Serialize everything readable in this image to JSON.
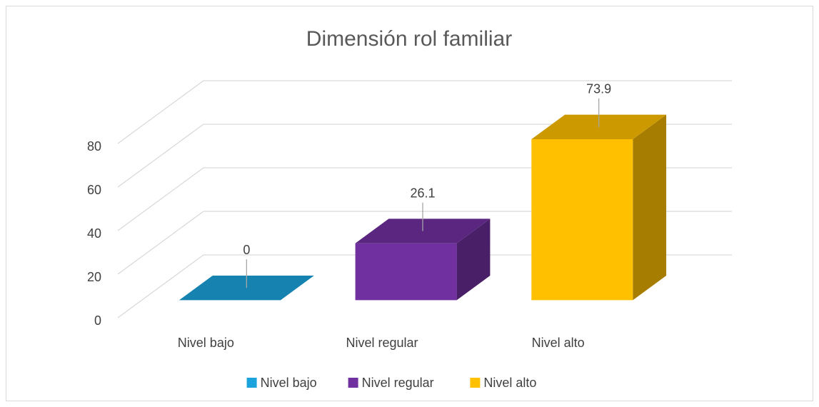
{
  "chart_data": {
    "type": "bar3d",
    "title": "Dimensión rol familiar",
    "categories": [
      "Nivel bajo",
      "Nivel regular",
      "Nivel alto"
    ],
    "values": [
      0,
      26.1,
      73.9
    ],
    "colors": [
      "#1aa3dc",
      "#7030a0",
      "#ffc000"
    ],
    "ylim": [
      0,
      80
    ],
    "yticks": [
      0,
      20,
      40,
      60,
      80
    ],
    "grid": true,
    "legend": "bottom"
  }
}
